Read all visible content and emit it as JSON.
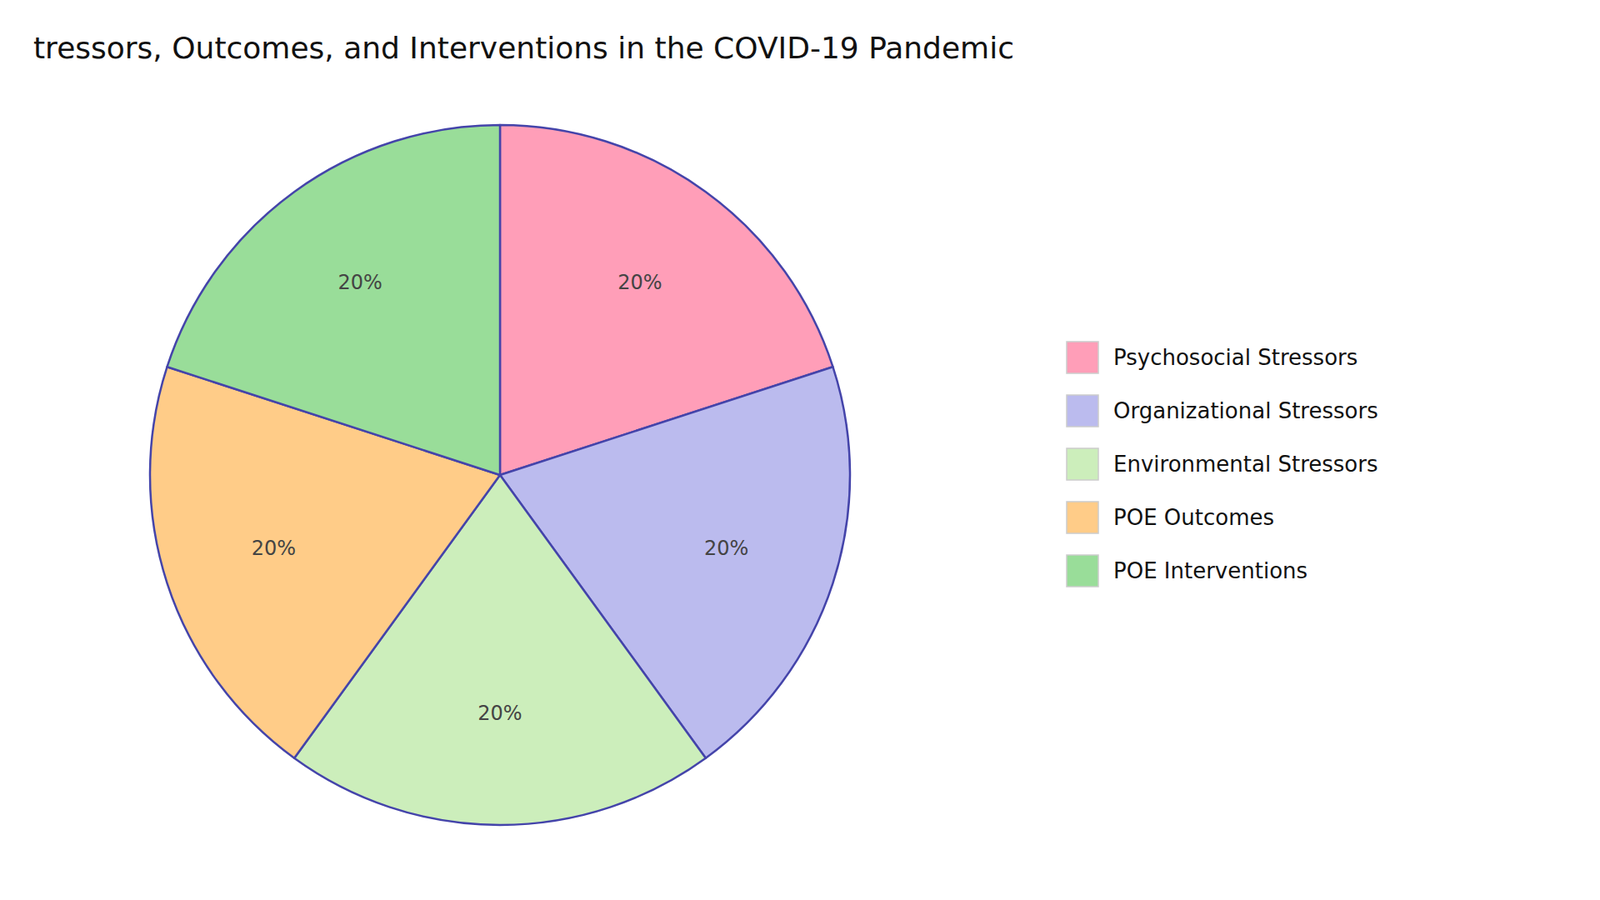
{
  "chart_data": {
    "type": "pie",
    "title": "tressors, Outcomes, and Interventions in the COVID-19 Pandemic",
    "categories": [
      "Psychosocial Stressors",
      "Organizational Stressors",
      "Environmental Stressors",
      "POE Outcomes",
      "POE Interventions"
    ],
    "values": [
      20,
      20,
      20,
      20,
      20
    ],
    "value_labels": [
      "20%",
      "20%",
      "20%",
      "20%",
      "20%"
    ],
    "colors": [
      "#FF9EB8",
      "#BBBBEE",
      "#CCEEBB",
      "#FFCC88",
      "#99DD99"
    ],
    "data_labels": true,
    "legend": "right"
  }
}
